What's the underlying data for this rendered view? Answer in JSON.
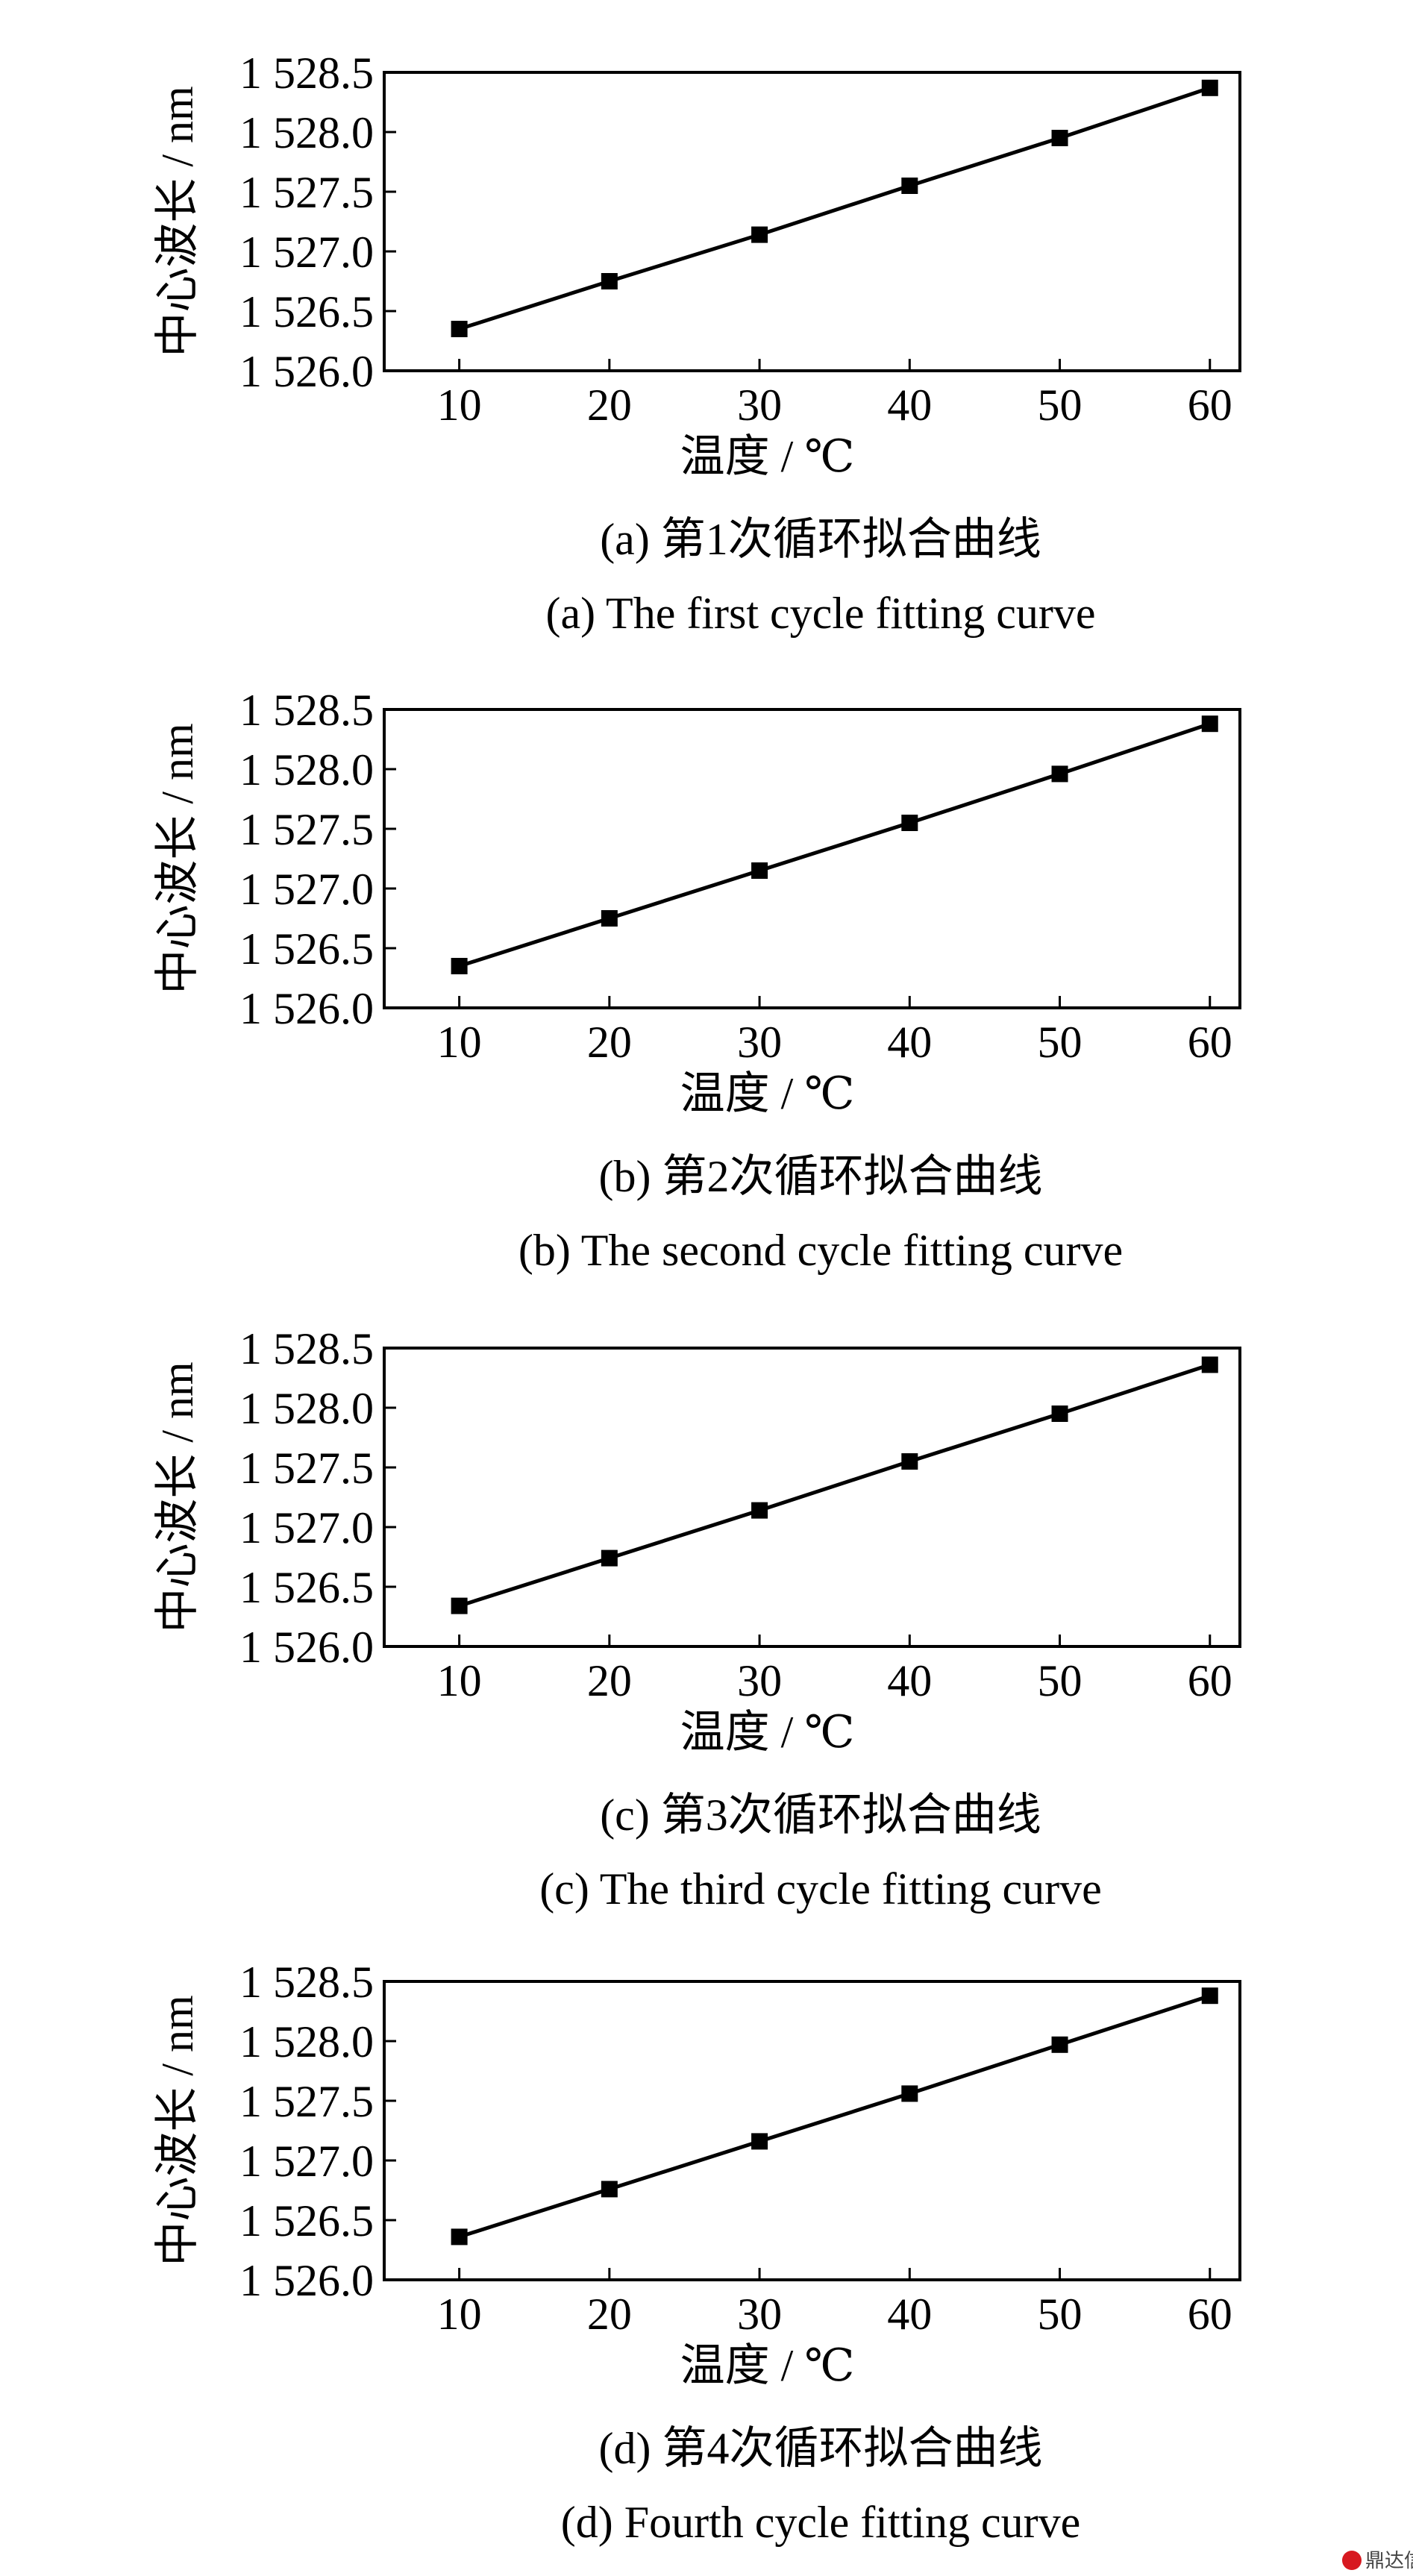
{
  "figure": {
    "watermark": {
      "label": "鼎达信",
      "color": "#d71920"
    }
  },
  "chart_data": [
    {
      "type": "line",
      "xlabel": "温度 / ℃",
      "ylabel": "中心波长 / nm",
      "xlim": [
        5,
        62
      ],
      "ylim": [
        1526.0,
        1528.5
      ],
      "xticks": [
        10,
        20,
        30,
        40,
        50,
        60
      ],
      "xtick_labels": [
        "10",
        "20",
        "30",
        "40",
        "50",
        "60"
      ],
      "yticks": [
        1526.0,
        1526.5,
        1527.0,
        1527.5,
        1528.0,
        1528.5
      ],
      "ytick_labels": [
        "1 526.0",
        "1 526.5",
        "1 527.0",
        "1 527.5",
        "1 528.0",
        "1 528.5"
      ],
      "grid": false,
      "marker": "square",
      "series": [
        {
          "x": [
            10,
            20,
            30,
            40,
            50,
            60
          ],
          "values": [
            1526.35,
            1526.75,
            1527.14,
            1527.55,
            1527.95,
            1528.37
          ]
        }
      ],
      "caption_cn": "(a)  第1次循环拟合曲线",
      "caption_en": "(a)  The first cycle fitting curve"
    },
    {
      "type": "line",
      "xlabel": "温度 / ℃",
      "ylabel": "中心波长 / nm",
      "xlim": [
        5,
        62
      ],
      "ylim": [
        1526.0,
        1528.5
      ],
      "xticks": [
        10,
        20,
        30,
        40,
        50,
        60
      ],
      "xtick_labels": [
        "10",
        "20",
        "30",
        "40",
        "50",
        "60"
      ],
      "yticks": [
        1526.0,
        1526.5,
        1527.0,
        1527.5,
        1528.0,
        1528.5
      ],
      "ytick_labels": [
        "1 526.0",
        "1 526.5",
        "1 527.0",
        "1 527.5",
        "1 528.0",
        "1 528.5"
      ],
      "grid": false,
      "marker": "square",
      "series": [
        {
          "x": [
            10,
            20,
            30,
            40,
            50,
            60
          ],
          "values": [
            1526.35,
            1526.75,
            1527.15,
            1527.55,
            1527.96,
            1528.38
          ]
        }
      ],
      "caption_cn": "(b)  第2次循环拟合曲线",
      "caption_en": "(b)  The second cycle fitting curve"
    },
    {
      "type": "line",
      "xlabel": "温度 / ℃",
      "ylabel": "中心波长 / nm",
      "xlim": [
        5,
        62
      ],
      "ylim": [
        1526.0,
        1528.5
      ],
      "xticks": [
        10,
        20,
        30,
        40,
        50,
        60
      ],
      "xtick_labels": [
        "10",
        "20",
        "30",
        "40",
        "50",
        "60"
      ],
      "yticks": [
        1526.0,
        1526.5,
        1527.0,
        1527.5,
        1528.0,
        1528.5
      ],
      "ytick_labels": [
        "1 526.0",
        "1 526.5",
        "1 527.0",
        "1 527.5",
        "1 528.0",
        "1 528.5"
      ],
      "grid": false,
      "marker": "square",
      "series": [
        {
          "x": [
            10,
            20,
            30,
            40,
            50,
            60
          ],
          "values": [
            1526.34,
            1526.74,
            1527.14,
            1527.55,
            1527.95,
            1528.36
          ]
        }
      ],
      "caption_cn": "(c)  第3次循环拟合曲线",
      "caption_en": "(c)  The third cycle fitting curve"
    },
    {
      "type": "line",
      "xlabel": "温度 / ℃",
      "ylabel": "中心波长 / nm",
      "xlim": [
        5,
        62
      ],
      "ylim": [
        1526.0,
        1528.5
      ],
      "xticks": [
        10,
        20,
        30,
        40,
        50,
        60
      ],
      "xtick_labels": [
        "10",
        "20",
        "30",
        "40",
        "50",
        "60"
      ],
      "yticks": [
        1526.0,
        1526.5,
        1527.0,
        1527.5,
        1528.0,
        1528.5
      ],
      "ytick_labels": [
        "1 526.0",
        "1 526.5",
        "1 527.0",
        "1 527.5",
        "1 528.0",
        "1 528.5"
      ],
      "grid": false,
      "marker": "square",
      "series": [
        {
          "x": [
            10,
            20,
            30,
            40,
            50,
            60
          ],
          "values": [
            1526.36,
            1526.76,
            1527.16,
            1527.56,
            1527.97,
            1528.38
          ]
        }
      ],
      "caption_cn": "(d)  第4次循环拟合曲线",
      "caption_en": "(d)  Fourth cycle fitting curve"
    }
  ]
}
